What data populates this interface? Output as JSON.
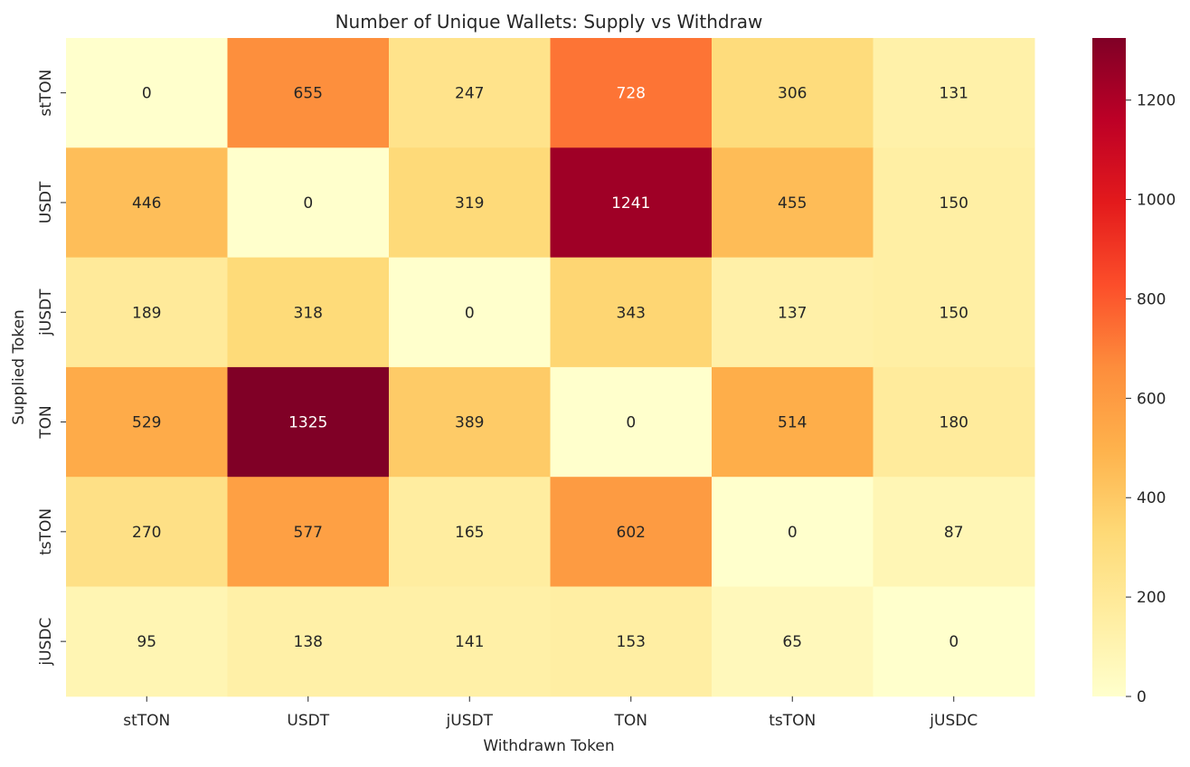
{
  "chart_data": {
    "type": "heatmap",
    "title": "Number of Unique Wallets: Supply vs Withdraw",
    "xlabel": "Withdrawn Token",
    "ylabel": "Supplied Token",
    "x_categories": [
      "stTON",
      "USDT",
      "jUSDT",
      "TON",
      "tsTON",
      "jUSDC"
    ],
    "y_categories": [
      "stTON",
      "USDT",
      "jUSDT",
      "TON",
      "tsTON",
      "jUSDC"
    ],
    "values": [
      [
        0,
        655,
        247,
        728,
        306,
        131
      ],
      [
        446,
        0,
        319,
        1241,
        455,
        150
      ],
      [
        189,
        318,
        0,
        343,
        137,
        150
      ],
      [
        529,
        1325,
        389,
        0,
        514,
        180
      ],
      [
        270,
        577,
        165,
        602,
        0,
        87
      ],
      [
        95,
        138,
        141,
        153,
        65,
        0
      ]
    ],
    "colormap": "YlOrRd",
    "colorbar": {
      "range": [
        0,
        1325
      ],
      "ticks": [
        0,
        200,
        400,
        600,
        800,
        1000,
        1200
      ]
    },
    "annotations": true,
    "legend": "colorbar-right",
    "grid": false
  }
}
